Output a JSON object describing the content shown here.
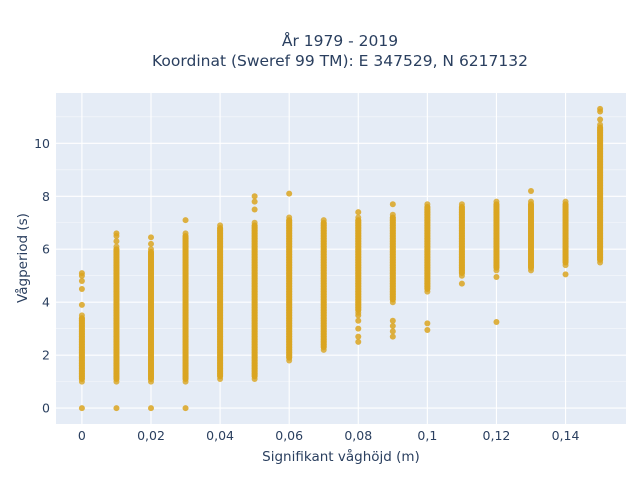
{
  "chart_data": {
    "type": "scatter",
    "title": [
      "År 1979 - 2019",
      "Koordinat (Sweref 99 TM): E 347529, N 6217132"
    ],
    "xlabel": "Signifikant våghöjd (m)",
    "ylabel": "Vågperiod (s)",
    "xlim": [
      -0.0075,
      0.1575
    ],
    "ylim": [
      -0.6,
      11.9
    ],
    "xticks": [
      0,
      0.02,
      0.04,
      0.06,
      0.08,
      0.1,
      0.12,
      0.14
    ],
    "xtick_labels": [
      "0",
      "0,02",
      "0,04",
      "0,06",
      "0,08",
      "0,1",
      "0,12",
      "0,14"
    ],
    "yticks": [
      0,
      2,
      4,
      6,
      8,
      10
    ],
    "ytick_labels": [
      "0",
      "2",
      "4",
      "6",
      "8",
      "10"
    ],
    "grid": true,
    "legend": "none",
    "colors": {
      "marker": "#DAA520",
      "plot_bg": "#E5ECF6",
      "grid": "#ffffff"
    },
    "series_ranges": [
      {
        "x": 0,
        "ymin": 1.0,
        "ymax": 3.5,
        "outliers": [
          0,
          3.9,
          4.5,
          4.8,
          5.0,
          5.1
        ]
      },
      {
        "x": 0.01,
        "ymin": 1.0,
        "ymax": 6.1,
        "outliers": [
          0,
          6.3,
          6.5,
          6.6
        ]
      },
      {
        "x": 0.02,
        "ymin": 1.0,
        "ymax": 6.0,
        "outliers": [
          0,
          6.2,
          6.45
        ]
      },
      {
        "x": 0.03,
        "ymin": 1.0,
        "ymax": 6.6,
        "outliers": [
          0,
          7.1
        ]
      },
      {
        "x": 0.04,
        "ymin": 1.1,
        "ymax": 6.9,
        "outliers": []
      },
      {
        "x": 0.05,
        "ymin": 1.1,
        "ymax": 7.0,
        "outliers": [
          7.5,
          7.8,
          8.0
        ]
      },
      {
        "x": 0.06,
        "ymin": 1.8,
        "ymax": 7.2,
        "outliers": [
          8.1
        ]
      },
      {
        "x": 0.07,
        "ymin": 2.2,
        "ymax": 7.1,
        "outliers": []
      },
      {
        "x": 0.08,
        "ymin": 3.6,
        "ymax": 7.2,
        "outliers": [
          2.5,
          2.7,
          3.0,
          3.3,
          3.5,
          7.4
        ]
      },
      {
        "x": 0.09,
        "ymin": 4.0,
        "ymax": 7.3,
        "outliers": [
          2.7,
          2.9,
          3.1,
          3.3,
          7.7
        ]
      },
      {
        "x": 0.1,
        "ymin": 4.4,
        "ymax": 7.7,
        "outliers": [
          2.95,
          3.2
        ]
      },
      {
        "x": 0.11,
        "ymin": 5.0,
        "ymax": 7.7,
        "outliers": [
          4.7
        ]
      },
      {
        "x": 0.12,
        "ymin": 5.2,
        "ymax": 7.8,
        "outliers": [
          3.25,
          4.95
        ]
      },
      {
        "x": 0.13,
        "ymin": 5.2,
        "ymax": 7.8,
        "outliers": [
          8.2
        ]
      },
      {
        "x": 0.14,
        "ymin": 5.4,
        "ymax": 7.8,
        "outliers": [
          5.05
        ]
      },
      {
        "x": 0.15,
        "ymin": 5.5,
        "ymax": 10.7,
        "outliers": [
          10.9,
          11.2,
          11.3
        ]
      }
    ]
  }
}
